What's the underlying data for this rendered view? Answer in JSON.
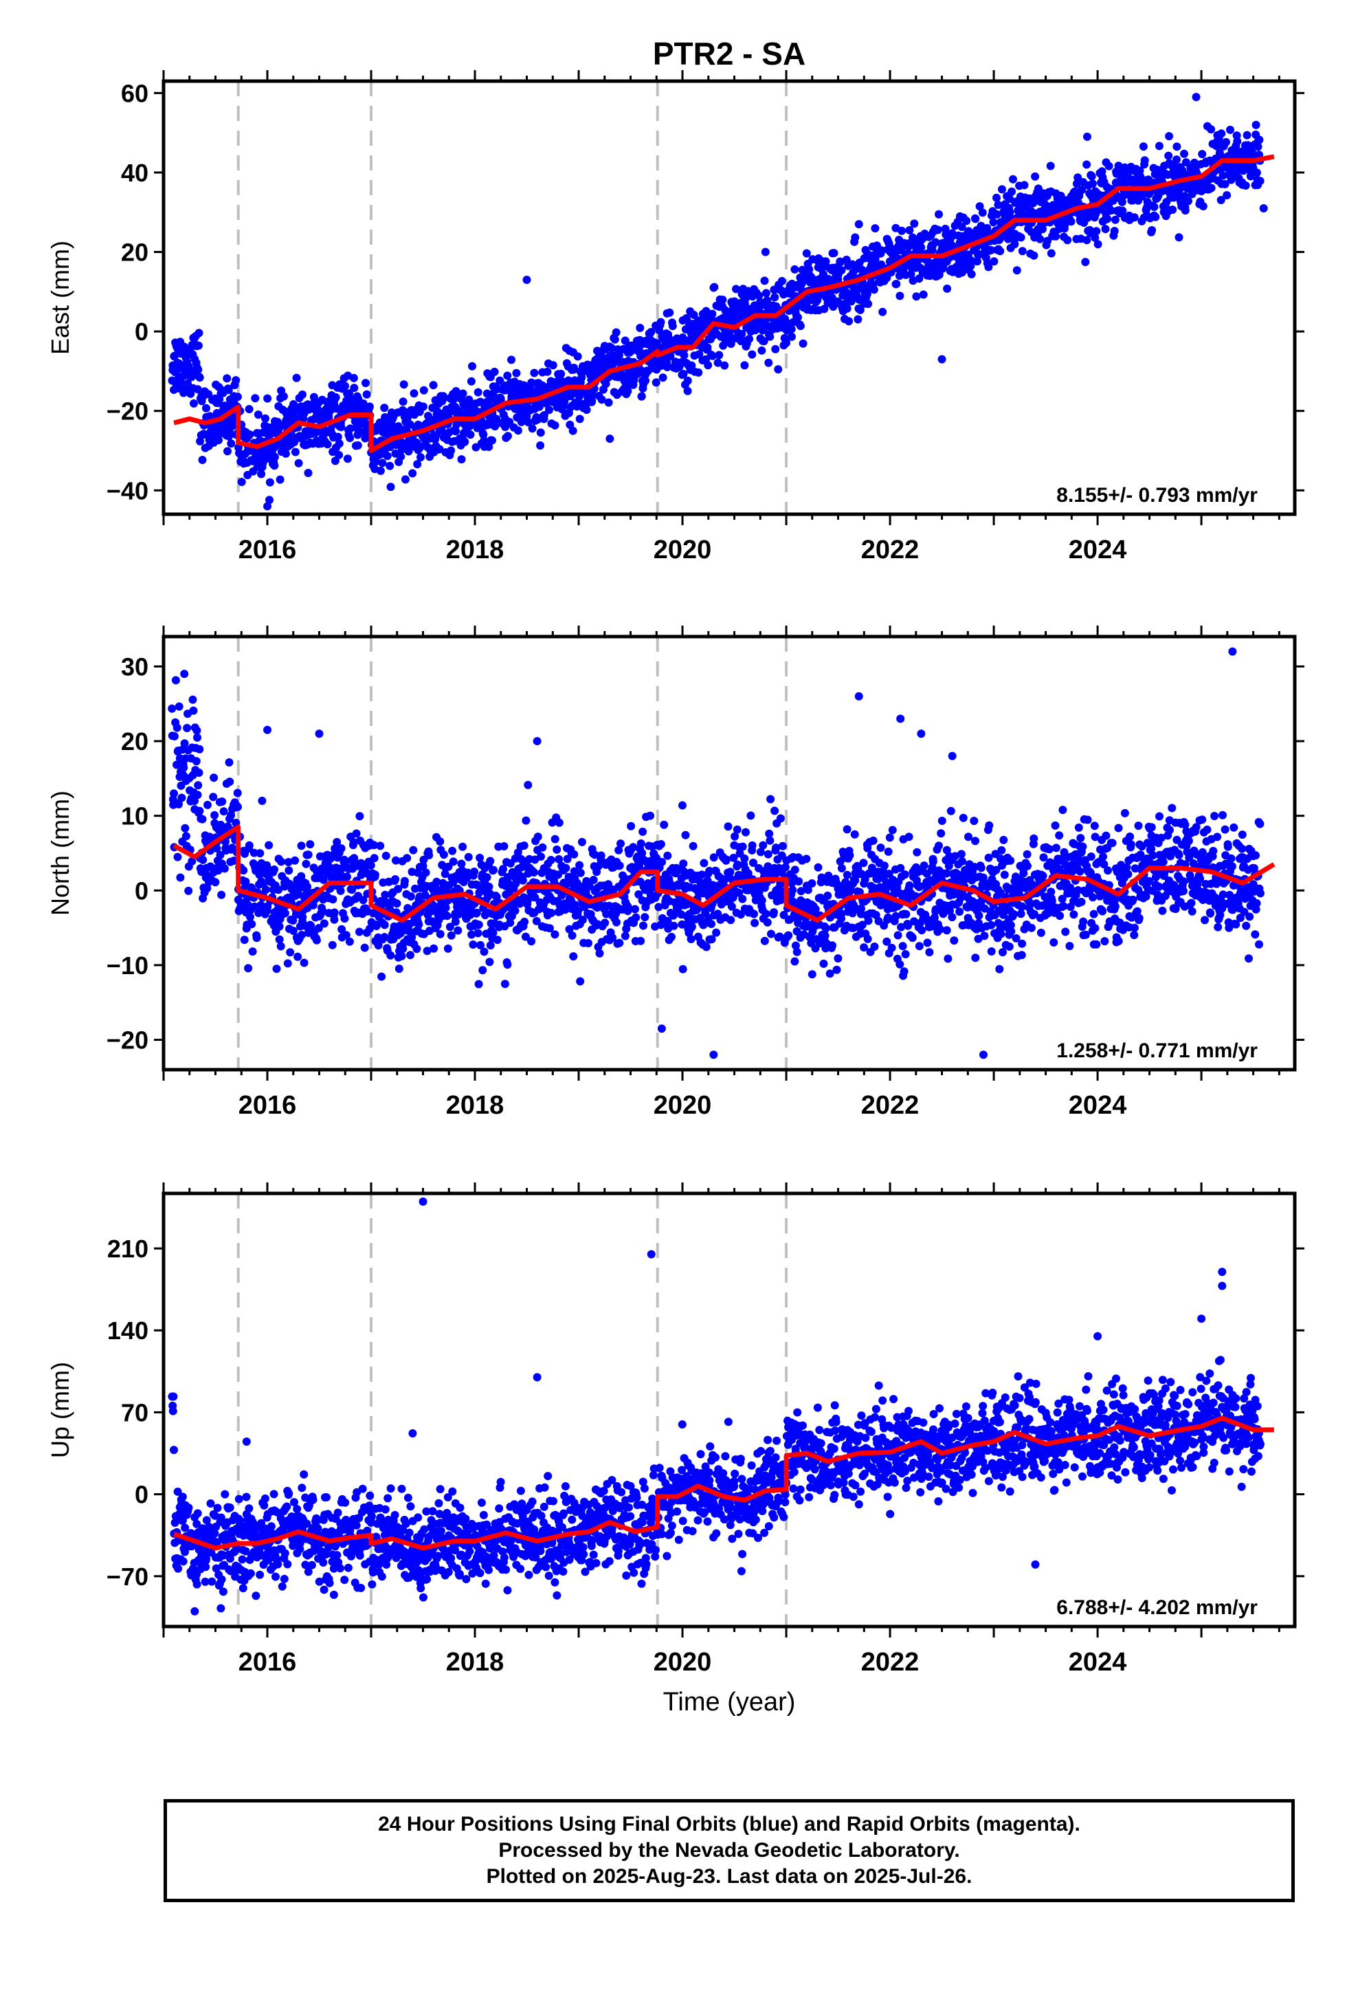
{
  "title": "PTR2 - SA",
  "xlabel": "Time (year)",
  "x_tick_labels": [
    "2016",
    "2018",
    "2020",
    "2022",
    "2024"
  ],
  "colors": {
    "final_orbits": "#0000ff",
    "model": "#ff0000",
    "breaks": "#c0c0c0",
    "axes": "#000000"
  },
  "chart_data": [
    {
      "type": "scatter",
      "ylabel": "East (mm)",
      "rate": "8.155+/- 0.793 mm/yr",
      "xlim": [
        2015.0,
        2025.9
      ],
      "ylim": [
        -46,
        63
      ],
      "y_ticks": [
        -40,
        -20,
        0,
        20,
        40,
        60
      ],
      "y_tick_labels": [
        "−40",
        "−20",
        "0",
        "20",
        "40",
        "60"
      ],
      "breaks": [
        2015.72,
        2017.0,
        2019.76,
        2021.0
      ],
      "model_line": [
        [
          2015.1,
          -23
        ],
        [
          2015.25,
          -22
        ],
        [
          2015.4,
          -23
        ],
        [
          2015.55,
          -22
        ],
        [
          2015.72,
          -19
        ],
        [
          2015.72,
          -28
        ],
        [
          2015.9,
          -29
        ],
        [
          2016.1,
          -27
        ],
        [
          2016.3,
          -23
        ],
        [
          2016.5,
          -24
        ],
        [
          2016.8,
          -21
        ],
        [
          2017.0,
          -21
        ],
        [
          2017.0,
          -30
        ],
        [
          2017.2,
          -27
        ],
        [
          2017.5,
          -25
        ],
        [
          2017.8,
          -22
        ],
        [
          2018.0,
          -22
        ],
        [
          2018.3,
          -18
        ],
        [
          2018.6,
          -17
        ],
        [
          2018.9,
          -14
        ],
        [
          2019.1,
          -14
        ],
        [
          2019.3,
          -10
        ],
        [
          2019.6,
          -8
        ],
        [
          2019.76,
          -5
        ],
        [
          2019.76,
          -6
        ],
        [
          2019.95,
          -4
        ],
        [
          2020.1,
          -4
        ],
        [
          2020.3,
          2
        ],
        [
          2020.5,
          1
        ],
        [
          2020.7,
          4
        ],
        [
          2020.9,
          4
        ],
        [
          2021.0,
          6
        ],
        [
          2021.2,
          10
        ],
        [
          2021.4,
          11
        ],
        [
          2021.7,
          13
        ],
        [
          2022.0,
          16
        ],
        [
          2022.2,
          19
        ],
        [
          2022.5,
          19
        ],
        [
          2022.8,
          22
        ],
        [
          2023.0,
          24
        ],
        [
          2023.2,
          28
        ],
        [
          2023.5,
          28
        ],
        [
          2023.8,
          31
        ],
        [
          2024.0,
          32
        ],
        [
          2024.2,
          36
        ],
        [
          2024.5,
          36
        ],
        [
          2024.8,
          38
        ],
        [
          2025.0,
          39
        ],
        [
          2025.2,
          43
        ],
        [
          2025.5,
          43
        ],
        [
          2025.7,
          44
        ]
      ],
      "outliers": [
        [
          2016.0,
          -44
        ],
        [
          2018.5,
          13
        ],
        [
          2019.3,
          -27
        ],
        [
          2020.8,
          20
        ],
        [
          2021.7,
          27
        ],
        [
          2022.5,
          -7
        ],
        [
          2023.9,
          49
        ],
        [
          2024.95,
          59
        ],
        [
          2025.6,
          31
        ]
      ]
    },
    {
      "type": "scatter",
      "ylabel": "North (mm)",
      "rate": "1.258+/- 0.771 mm/yr",
      "xlim": [
        2015.0,
        2025.9
      ],
      "ylim": [
        -24,
        34
      ],
      "y_ticks": [
        -20,
        -10,
        0,
        10,
        20,
        30
      ],
      "y_tick_labels": [
        "−20",
        "−10",
        "0",
        "10",
        "20",
        "30"
      ],
      "breaks": [
        2015.72,
        2017.0,
        2019.76,
        2021.0
      ],
      "model_line": [
        [
          2015.1,
          6
        ],
        [
          2015.3,
          4.5
        ],
        [
          2015.5,
          6.5
        ],
        [
          2015.72,
          8.5
        ],
        [
          2015.72,
          0
        ],
        [
          2016.0,
          -1
        ],
        [
          2016.3,
          -2.5
        ],
        [
          2016.6,
          1
        ],
        [
          2016.9,
          1
        ],
        [
          2017.0,
          1
        ],
        [
          2017.0,
          -2
        ],
        [
          2017.3,
          -4
        ],
        [
          2017.6,
          -1
        ],
        [
          2017.9,
          -0.5
        ],
        [
          2018.2,
          -2.5
        ],
        [
          2018.5,
          0.5
        ],
        [
          2018.8,
          0.5
        ],
        [
          2019.1,
          -1.5
        ],
        [
          2019.4,
          -0.5
        ],
        [
          2019.6,
          2.5
        ],
        [
          2019.76,
          2.5
        ],
        [
          2019.76,
          0
        ],
        [
          2020.0,
          -0.5
        ],
        [
          2020.2,
          -2
        ],
        [
          2020.5,
          1
        ],
        [
          2020.8,
          1.5
        ],
        [
          2021.0,
          1.5
        ],
        [
          2021.0,
          -2
        ],
        [
          2021.3,
          -4
        ],
        [
          2021.6,
          -1
        ],
        [
          2021.9,
          -0.5
        ],
        [
          2022.2,
          -2
        ],
        [
          2022.5,
          1
        ],
        [
          2022.8,
          0
        ],
        [
          2023.0,
          -1.5
        ],
        [
          2023.3,
          -1
        ],
        [
          2023.6,
          2
        ],
        [
          2023.9,
          1.5
        ],
        [
          2024.2,
          -0.5
        ],
        [
          2024.5,
          3
        ],
        [
          2024.8,
          3
        ],
        [
          2025.1,
          2.5
        ],
        [
          2025.4,
          1
        ],
        [
          2025.7,
          3.5
        ]
      ],
      "outliers": [
        [
          2015.2,
          29
        ],
        [
          2016.0,
          21.5
        ],
        [
          2016.5,
          21
        ],
        [
          2018.6,
          20
        ],
        [
          2019.8,
          -18.5
        ],
        [
          2020.3,
          -22
        ],
        [
          2021.7,
          26
        ],
        [
          2022.1,
          23
        ],
        [
          2022.3,
          21
        ],
        [
          2022.6,
          18
        ],
        [
          2022.9,
          -22
        ],
        [
          2025.3,
          32
        ]
      ]
    },
    {
      "type": "scatter",
      "ylabel": "Up (mm)",
      "rate": "6.788+/- 4.202 mm/yr",
      "xlim": [
        2015.0,
        2025.9
      ],
      "ylim": [
        -113,
        257
      ],
      "y_ticks": [
        -70,
        0,
        70,
        140,
        210
      ],
      "y_tick_labels": [
        "−70",
        "0",
        "70",
        "140",
        "210"
      ],
      "breaks": [
        2015.72,
        2017.0,
        2019.76,
        2021.0
      ],
      "model_line": [
        [
          2015.1,
          -34
        ],
        [
          2015.3,
          -40
        ],
        [
          2015.5,
          -46
        ],
        [
          2015.72,
          -42
        ],
        [
          2015.9,
          -42
        ],
        [
          2016.1,
          -38
        ],
        [
          2016.3,
          -32
        ],
        [
          2016.6,
          -40
        ],
        [
          2016.8,
          -37
        ],
        [
          2017.0,
          -35
        ],
        [
          2017.0,
          -42
        ],
        [
          2017.2,
          -38
        ],
        [
          2017.5,
          -46
        ],
        [
          2017.8,
          -40
        ],
        [
          2018.0,
          -40
        ],
        [
          2018.3,
          -33
        ],
        [
          2018.6,
          -40
        ],
        [
          2018.9,
          -34
        ],
        [
          2019.1,
          -32
        ],
        [
          2019.3,
          -24
        ],
        [
          2019.55,
          -32
        ],
        [
          2019.76,
          -28
        ],
        [
          2019.76,
          -2
        ],
        [
          2019.95,
          -2
        ],
        [
          2020.15,
          7
        ],
        [
          2020.4,
          -2
        ],
        [
          2020.6,
          -5
        ],
        [
          2020.8,
          3
        ],
        [
          2021.0,
          4
        ],
        [
          2021.0,
          33
        ],
        [
          2021.2,
          35
        ],
        [
          2021.4,
          28
        ],
        [
          2021.7,
          35
        ],
        [
          2022.0,
          36
        ],
        [
          2022.3,
          45
        ],
        [
          2022.5,
          35
        ],
        [
          2022.8,
          42
        ],
        [
          2023.0,
          45
        ],
        [
          2023.2,
          53
        ],
        [
          2023.5,
          43
        ],
        [
          2023.8,
          48
        ],
        [
          2024.0,
          50
        ],
        [
          2024.2,
          58
        ],
        [
          2024.5,
          50
        ],
        [
          2024.8,
          55
        ],
        [
          2025.0,
          58
        ],
        [
          2025.2,
          65
        ],
        [
          2025.5,
          55
        ],
        [
          2025.7,
          55
        ]
      ],
      "outliers": [
        [
          2015.3,
          -100
        ],
        [
          2015.8,
          45
        ],
        [
          2017.4,
          52
        ],
        [
          2017.5,
          250
        ],
        [
          2018.6,
          100
        ],
        [
          2019.7,
          205
        ],
        [
          2023.4,
          -60
        ],
        [
          2024.0,
          135
        ],
        [
          2025.2,
          190
        ],
        [
          2025.2,
          178
        ],
        [
          2025.0,
          150
        ]
      ]
    }
  ],
  "footer": {
    "line1": "24 Hour Positions Using Final Orbits (blue) and Rapid Orbits (magenta).",
    "line2": "Processed by the Nevada Geodetic Laboratory.",
    "line3": "Plotted on 2025-Aug-23. Last data on 2025-Jul-26."
  }
}
